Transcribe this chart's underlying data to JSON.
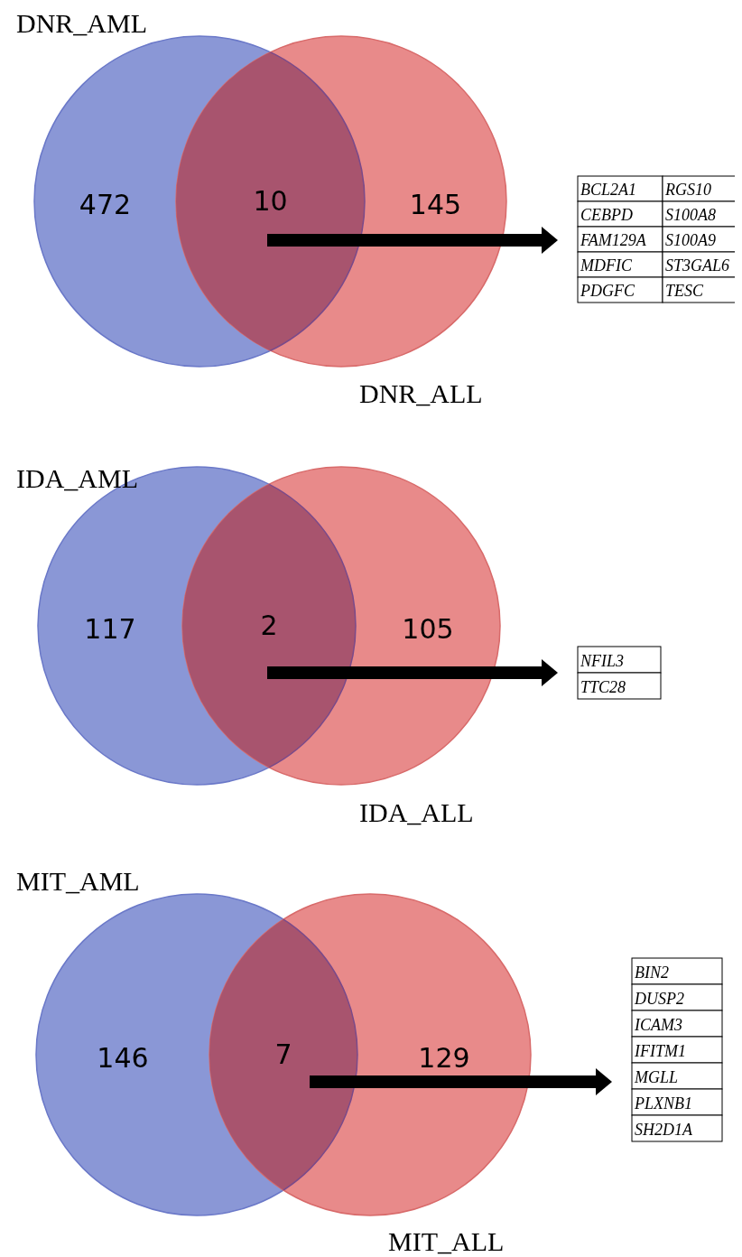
{
  "chart_data": [
    {
      "type": "other",
      "categories": [
        "DNR_AML",
        null,
        "DNR_ALL"
      ],
      "values": [
        472,
        10,
        145
      ],
      "data_labels": true,
      "colors": [
        "#8a97d6",
        "#a8546e",
        "#e88a8a"
      ],
      "annotations": [
        "BCL2A1",
        "CEBPD",
        "FAM129A",
        "MDFIC",
        "PDGFC",
        "RGS10",
        "S100A8",
        "S100A9",
        "ST3GAL6",
        "TESC"
      ]
    },
    {
      "type": "other",
      "categories": [
        "IDA_AML",
        null,
        "IDA_ALL"
      ],
      "values": [
        117,
        2,
        105
      ],
      "data_labels": true,
      "colors": [
        "#8a97d6",
        "#a8546e",
        "#e88a8a"
      ],
      "annotations": [
        "NFIL3",
        "TTC28"
      ]
    },
    {
      "type": "other",
      "categories": [
        "MIT_AML",
        null,
        "MIT_ALL"
      ],
      "values": [
        146,
        7,
        129
      ],
      "data_labels": true,
      "colors": [
        "#8a97d6",
        "#a8546e",
        "#e88a8a"
      ],
      "annotations": [
        "BIN2",
        "DUSP2",
        "ICAM3",
        "IFITM1",
        "MGLL",
        "PLXNB1",
        "SH2D1A"
      ]
    }
  ]
}
